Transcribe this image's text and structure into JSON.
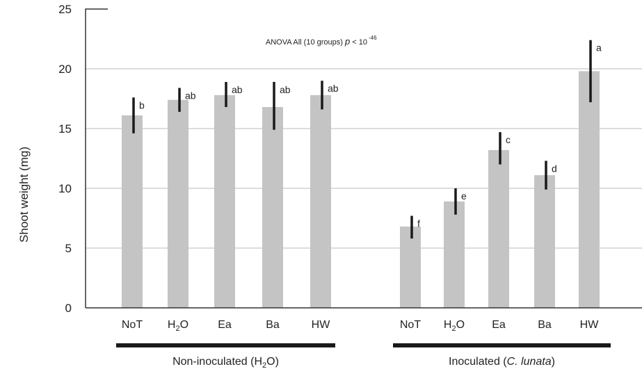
{
  "chart_data": {
    "type": "bar",
    "annotation": "ANOVA All (10 groups) p < 10",
    "annotation_exponent": "-46",
    "ylabel": "Shoot weight (mg)",
    "ylim": [
      0,
      25
    ],
    "yticks": [
      0,
      5,
      10,
      15,
      20,
      25
    ],
    "grid": true,
    "groups": [
      {
        "label": "Non-inoculated (H2O)",
        "categories": [
          "NoT",
          "H2O",
          "Ea",
          "Ba",
          "HW"
        ],
        "values": [
          16.1,
          17.4,
          17.8,
          16.8,
          17.8
        ],
        "error_low": [
          14.6,
          16.4,
          16.8,
          14.9,
          16.6
        ],
        "error_high": [
          17.6,
          18.4,
          18.9,
          18.9,
          19.0
        ],
        "significance": [
          "b",
          "ab",
          "ab",
          "ab",
          "ab"
        ]
      },
      {
        "label": "Inoculated (C. lunata)",
        "categories": [
          "NoT",
          "H2O",
          "Ea",
          "Ba",
          "HW"
        ],
        "values": [
          6.8,
          8.9,
          13.2,
          11.1,
          19.8
        ],
        "error_low": [
          5.8,
          7.8,
          12.0,
          9.9,
          17.2
        ],
        "error_high": [
          7.7,
          10.0,
          14.7,
          12.3,
          22.4
        ],
        "significance": [
          "f",
          "e",
          "c",
          "d",
          "a"
        ]
      }
    ]
  }
}
